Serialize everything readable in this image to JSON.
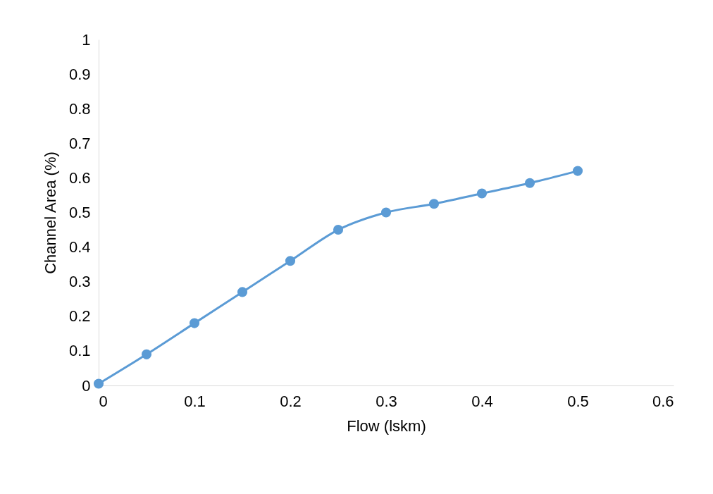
{
  "chart_data": {
    "type": "line",
    "xlabel": "Flow (lskm)",
    "ylabel": "Channel Area (%)",
    "x": [
      0,
      0.05,
      0.1,
      0.15,
      0.2,
      0.25,
      0.3,
      0.35,
      0.4,
      0.45,
      0.5
    ],
    "series": [
      {
        "color": "#5b9bd5",
        "values": [
          0.005,
          0.09,
          0.18,
          0.27,
          0.36,
          0.45,
          0.5,
          0.525,
          0.555,
          0.585,
          0.62
        ]
      }
    ],
    "xlim": [
      0,
      0.6
    ],
    "xticks": [
      0,
      0.1,
      0.2,
      0.3,
      0.4,
      0.5,
      0.6
    ],
    "ylim": [
      0,
      1
    ],
    "yticks": [
      0,
      0.1,
      0.2,
      0.3,
      0.4,
      0.5,
      0.6,
      0.7,
      0.8,
      0.9,
      1
    ],
    "grid": false,
    "legend": false,
    "marker": "circle",
    "line_style": "solid"
  }
}
